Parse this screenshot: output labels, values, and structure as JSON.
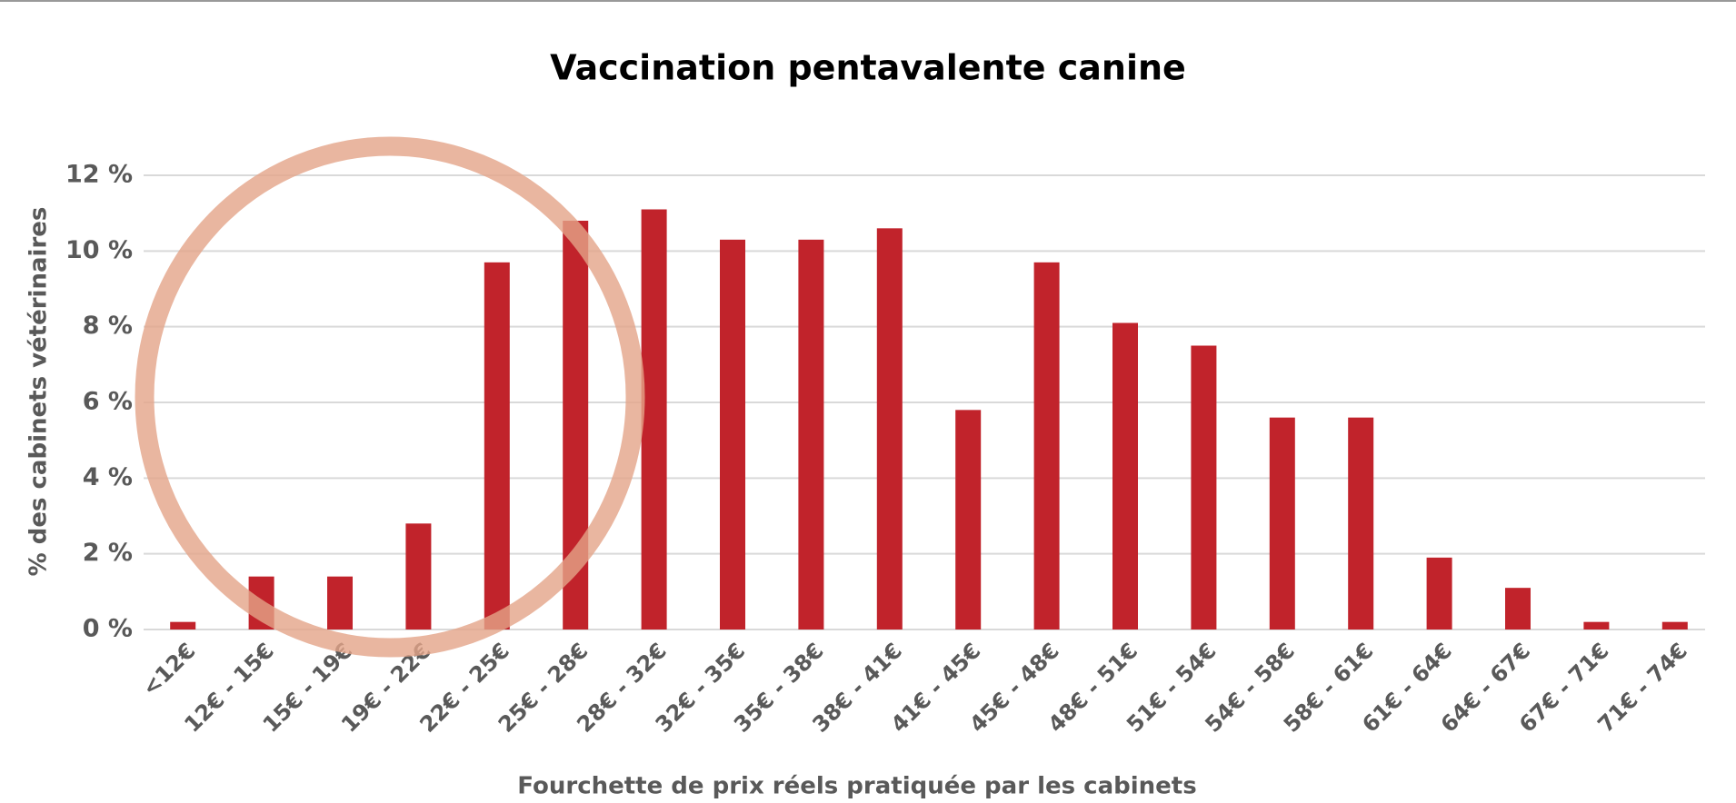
{
  "chart_data": {
    "type": "bar",
    "title": "Vaccination pentavalente canine",
    "x_label": "Fourchette de prix réels pratiquée par les cabinets",
    "y_label": "% des cabinets vétérinaires",
    "categories": [
      "<12€",
      "12€ - 15€",
      "15€ - 19€",
      "19€ - 22€",
      "22€ - 25€",
      "25€ - 28€",
      "28€ - 32€",
      "32€ - 35€",
      "35€ - 38€",
      "38€ - 41€",
      "41€ - 45€",
      "45€ - 48€",
      "48€ - 51€",
      "51€ - 54€",
      "54€ - 58€",
      "58€ - 61€",
      "61€ - 64€",
      "64€ - 67€",
      "67€ - 71€",
      "71€ - 74€"
    ],
    "values": [
      0.2,
      1.4,
      1.4,
      2.8,
      9.7,
      10.8,
      11.1,
      10.3,
      10.3,
      10.6,
      5.8,
      9.7,
      8.1,
      7.5,
      5.6,
      5.6,
      1.9,
      1.1,
      0.2,
      0.2
    ],
    "color": "#c1232b",
    "ylim": [
      0,
      12
    ],
    "yticks": [
      {
        "value": 0,
        "label": "0 %"
      },
      {
        "value": 2,
        "label": "2 %"
      },
      {
        "value": 4,
        "label": "4 %"
      },
      {
        "value": 6,
        "label": "6 %"
      },
      {
        "value": 8,
        "label": "8 %"
      },
      {
        "value": 10,
        "label": "10 %"
      },
      {
        "value": 12,
        "label": "12 %"
      }
    ],
    "grid": true
  }
}
